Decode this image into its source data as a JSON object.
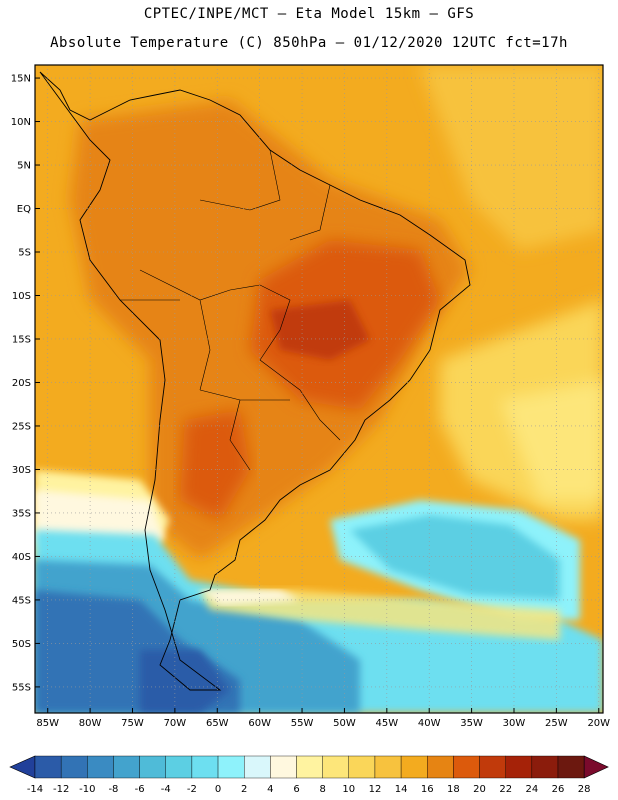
{
  "header": {
    "line1": "CPTEC/INPE/MCT –  Eta Model 15km – GFS",
    "line2": "Absolute Temperature (C) 850hPa – 01/12/2020 12UTC fct=17h"
  },
  "map": {
    "lat_labels": [
      "15N",
      "10N",
      "5N",
      "EQ",
      "5S",
      "10S",
      "15S",
      "20S",
      "25S",
      "30S",
      "35S",
      "40S",
      "45S",
      "50S",
      "55S"
    ],
    "lon_labels": [
      "85W",
      "80W",
      "75W",
      "70W",
      "65W",
      "60W",
      "55W",
      "50W",
      "45W",
      "40W",
      "35W",
      "30W",
      "25W",
      "20W"
    ],
    "lat_min": -58,
    "lat_max": 16.5,
    "lon_min": -86.5,
    "lon_max": -19.5
  },
  "colorbar": {
    "labels": [
      "-14",
      "-12",
      "-10",
      "-8",
      "-6",
      "-4",
      "-2",
      "0",
      "2",
      "4",
      "6",
      "8",
      "10",
      "12",
      "14",
      "16",
      "18",
      "20",
      "22",
      "24",
      "26",
      "28"
    ],
    "colors": [
      "#21409a",
      "#2b5ba8",
      "#3273b5",
      "#3a8bc2",
      "#43a3cd",
      "#4fbbd8",
      "#5ccfe3",
      "#6ddff0",
      "#8ef2fb",
      "#d9f7fb",
      "#fff8df",
      "#fff3a0",
      "#fde67a",
      "#fad659",
      "#f7c23e",
      "#f3ab1f",
      "#e68413",
      "#dc5a0c",
      "#c13a0b",
      "#a52208",
      "#8b1c0c",
      "#6c180f",
      "#7a0a2c"
    ]
  }
}
